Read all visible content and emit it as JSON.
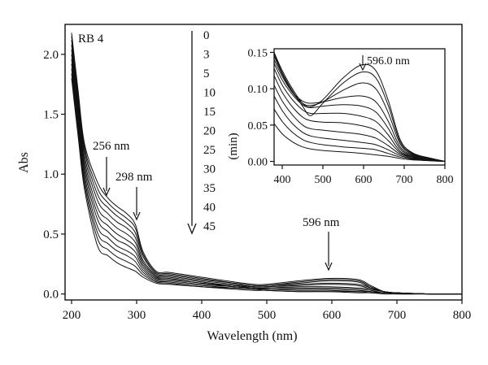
{
  "chart_data": [
    {
      "type": "line",
      "panel": "main",
      "title": "RB 4",
      "xlabel": "Wavelength (nm)",
      "ylabel": "Abs",
      "xlim": [
        190,
        800
      ],
      "ylim": [
        -0.05,
        2.25
      ],
      "x_ticks": [
        "200",
        "300",
        "400",
        "500",
        "600",
        "700",
        "800"
      ],
      "y_ticks": [
        "0.0",
        "0.5",
        "1.0",
        "1.5",
        "2.0"
      ],
      "x_tick_values": [
        200,
        300,
        400,
        500,
        600,
        700,
        800
      ],
      "y_tick_values": [
        0.0,
        0.5,
        1.0,
        1.5,
        2.0
      ],
      "time_series": {
        "label": "(min)",
        "values": [
          "0",
          "3",
          "5",
          "10",
          "15",
          "20",
          "25",
          "30",
          "35",
          "40",
          "45"
        ]
      },
      "annotations": [
        {
          "text": "256 nm",
          "x": 256,
          "y": 0.8
        },
        {
          "text": "298 nm",
          "x": 298,
          "y": 0.58
        },
        {
          "text": "596 nm",
          "x": 596,
          "y": 0.13
        }
      ],
      "x": [
        200,
        210,
        220,
        240,
        256,
        270,
        285,
        298,
        310,
        330,
        350,
        400,
        450,
        480,
        500,
        550,
        596,
        640,
        660,
        680,
        700,
        750,
        800
      ],
      "series": [
        {
          "label": "0",
          "values": [
            2.18,
            1.7,
            1.25,
            0.93,
            0.8,
            0.73,
            0.67,
            0.58,
            0.35,
            0.19,
            0.18,
            0.14,
            0.1,
            0.08,
            0.08,
            0.11,
            0.13,
            0.12,
            0.07,
            0.02,
            0.01,
            0.0,
            0.0
          ]
        },
        {
          "label": "3",
          "values": [
            2.15,
            1.67,
            1.22,
            0.88,
            0.76,
            0.69,
            0.63,
            0.55,
            0.33,
            0.18,
            0.17,
            0.13,
            0.09,
            0.07,
            0.07,
            0.1,
            0.12,
            0.11,
            0.06,
            0.02,
            0.01,
            0.0,
            0.0
          ]
        },
        {
          "label": "5",
          "values": [
            2.12,
            1.64,
            1.19,
            0.83,
            0.72,
            0.65,
            0.59,
            0.51,
            0.31,
            0.17,
            0.16,
            0.12,
            0.09,
            0.07,
            0.07,
            0.09,
            0.11,
            0.1,
            0.05,
            0.02,
            0.01,
            0.0,
            0.0
          ]
        },
        {
          "label": "10",
          "values": [
            2.08,
            1.6,
            1.15,
            0.78,
            0.67,
            0.6,
            0.55,
            0.47,
            0.28,
            0.16,
            0.15,
            0.11,
            0.08,
            0.06,
            0.06,
            0.08,
            0.09,
            0.08,
            0.05,
            0.02,
            0.01,
            0.0,
            0.0
          ]
        },
        {
          "label": "15",
          "values": [
            2.04,
            1.56,
            1.11,
            0.72,
            0.62,
            0.55,
            0.5,
            0.43,
            0.26,
            0.15,
            0.14,
            0.1,
            0.07,
            0.06,
            0.06,
            0.07,
            0.08,
            0.07,
            0.04,
            0.02,
            0.01,
            0.0,
            0.0
          ]
        },
        {
          "label": "20",
          "values": [
            2.0,
            1.52,
            1.07,
            0.67,
            0.57,
            0.5,
            0.45,
            0.39,
            0.24,
            0.14,
            0.13,
            0.09,
            0.07,
            0.05,
            0.05,
            0.06,
            0.06,
            0.05,
            0.04,
            0.02,
            0.01,
            0.0,
            0.0
          ]
        },
        {
          "label": "25",
          "values": [
            1.96,
            1.48,
            1.03,
            0.62,
            0.52,
            0.45,
            0.41,
            0.35,
            0.22,
            0.13,
            0.12,
            0.09,
            0.06,
            0.05,
            0.05,
            0.05,
            0.05,
            0.04,
            0.03,
            0.01,
            0.01,
            0.0,
            0.0
          ]
        },
        {
          "label": "30",
          "values": [
            1.92,
            1.44,
            0.99,
            0.56,
            0.47,
            0.4,
            0.36,
            0.31,
            0.2,
            0.12,
            0.11,
            0.08,
            0.06,
            0.05,
            0.04,
            0.04,
            0.04,
            0.03,
            0.02,
            0.01,
            0.01,
            0.0,
            0.0
          ]
        },
        {
          "label": "35",
          "values": [
            1.88,
            1.4,
            0.95,
            0.51,
            0.42,
            0.36,
            0.32,
            0.27,
            0.18,
            0.11,
            0.1,
            0.07,
            0.05,
            0.04,
            0.04,
            0.03,
            0.03,
            0.02,
            0.02,
            0.01,
            0.01,
            0.0,
            0.0
          ]
        },
        {
          "label": "40",
          "values": [
            1.84,
            1.36,
            0.91,
            0.46,
            0.37,
            0.31,
            0.27,
            0.23,
            0.16,
            0.1,
            0.09,
            0.06,
            0.05,
            0.04,
            0.03,
            0.02,
            0.02,
            0.02,
            0.01,
            0.01,
            0.0,
            0.0,
            0.0
          ]
        },
        {
          "label": "45",
          "values": [
            1.8,
            1.32,
            0.87,
            0.4,
            0.32,
            0.26,
            0.22,
            0.19,
            0.14,
            0.09,
            0.08,
            0.06,
            0.04,
            0.03,
            0.03,
            0.02,
            0.02,
            0.01,
            0.01,
            0.0,
            0.0,
            0.0,
            0.0
          ]
        }
      ]
    },
    {
      "type": "line",
      "panel": "inset",
      "ylabel": "(min)",
      "xlim": [
        380,
        800
      ],
      "ylim": [
        -0.005,
        0.155
      ],
      "x_ticks": [
        "400",
        "500",
        "600",
        "700",
        "800"
      ],
      "y_ticks": [
        "0.00",
        "0.05",
        "0.10",
        "0.15"
      ],
      "x_tick_values": [
        400,
        500,
        600,
        700,
        800
      ],
      "y_tick_values": [
        0.0,
        0.05,
        0.1,
        0.15
      ],
      "annotations": [
        {
          "text": "596.0 nm",
          "x": 596,
          "y": 0.135
        }
      ],
      "x": [
        380,
        400,
        425,
        450,
        470,
        500,
        550,
        596,
        630,
        660,
        690,
        720,
        760,
        800
      ],
      "series": [
        {
          "label": "0",
          "values": [
            0.15,
            0.125,
            0.1,
            0.08,
            0.075,
            0.085,
            0.115,
            0.133,
            0.125,
            0.085,
            0.03,
            0.012,
            0.005,
            0.0
          ]
        },
        {
          "label": "3",
          "values": [
            0.148,
            0.122,
            0.097,
            0.076,
            0.063,
            0.08,
            0.108,
            0.123,
            0.115,
            0.078,
            0.027,
            0.011,
            0.005,
            0.0
          ]
        },
        {
          "label": "5",
          "values": [
            0.145,
            0.12,
            0.095,
            0.08,
            0.077,
            0.082,
            0.098,
            0.108,
            0.1,
            0.068,
            0.024,
            0.01,
            0.004,
            0.0
          ]
        },
        {
          "label": "10",
          "values": [
            0.14,
            0.117,
            0.095,
            0.083,
            0.08,
            0.082,
            0.088,
            0.09,
            0.082,
            0.056,
            0.02,
            0.009,
            0.004,
            0.0
          ]
        },
        {
          "label": "15",
          "values": [
            0.135,
            0.112,
            0.092,
            0.078,
            0.074,
            0.076,
            0.078,
            0.076,
            0.068,
            0.046,
            0.017,
            0.008,
            0.003,
            0.0
          ]
        },
        {
          "label": "20",
          "values": [
            0.128,
            0.105,
            0.085,
            0.071,
            0.066,
            0.066,
            0.066,
            0.062,
            0.055,
            0.037,
            0.014,
            0.007,
            0.003,
            0.0
          ]
        },
        {
          "label": "25",
          "values": [
            0.118,
            0.095,
            0.075,
            0.061,
            0.056,
            0.054,
            0.053,
            0.049,
            0.043,
            0.029,
            0.012,
            0.006,
            0.002,
            0.0
          ]
        },
        {
          "label": "30",
          "values": [
            0.105,
            0.083,
            0.064,
            0.05,
            0.045,
            0.043,
            0.04,
            0.037,
            0.032,
            0.022,
            0.01,
            0.005,
            0.002,
            0.0
          ]
        },
        {
          "label": "35",
          "values": [
            0.09,
            0.07,
            0.052,
            0.04,
            0.035,
            0.032,
            0.029,
            0.026,
            0.023,
            0.016,
            0.008,
            0.004,
            0.002,
            0.0
          ]
        },
        {
          "label": "40",
          "values": [
            0.072,
            0.055,
            0.04,
            0.03,
            0.026,
            0.023,
            0.02,
            0.018,
            0.016,
            0.011,
            0.006,
            0.003,
            0.001,
            0.0
          ]
        },
        {
          "label": "45",
          "values": [
            0.052,
            0.038,
            0.027,
            0.02,
            0.017,
            0.015,
            0.013,
            0.011,
            0.009,
            0.007,
            0.004,
            0.002,
            0.001,
            0.0
          ]
        }
      ]
    }
  ]
}
